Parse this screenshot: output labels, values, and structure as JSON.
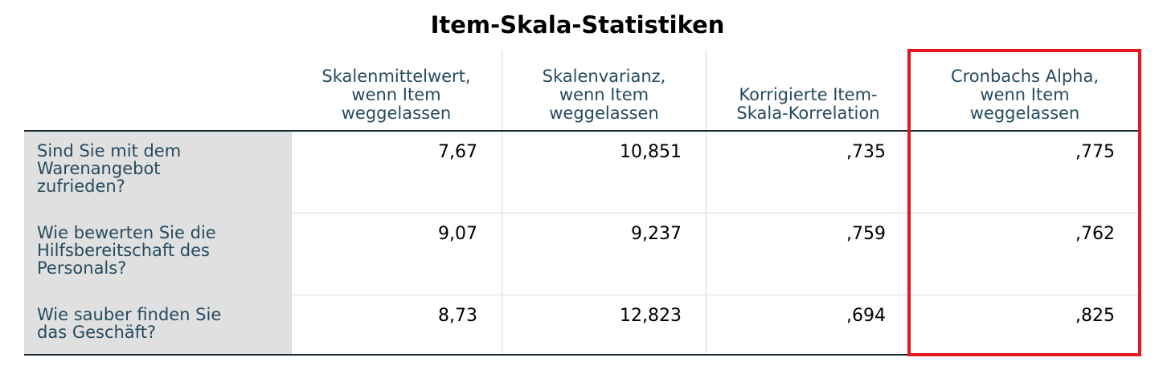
{
  "title": "Item-Skala-Statistiken",
  "table": {
    "columns": [
      [
        "Skalenmittelwert,",
        "wenn Item",
        "weggelassen"
      ],
      [
        "Skalenvarianz,",
        "wenn Item",
        "weggelassen"
      ],
      [
        "Korrigierte Item-",
        "Skala-Korrelation"
      ],
      [
        "Cronbachs Alpha,",
        "wenn Item",
        "weggelassen"
      ]
    ],
    "rows": [
      {
        "label": [
          "Sind Sie mit dem",
          "Warenangebot",
          "zufrieden?"
        ],
        "cells": [
          "7,67",
          "10,851",
          ",735",
          ",775"
        ]
      },
      {
        "label": [
          "Wie bewerten Sie die",
          "Hilfsbereitschaft des",
          "Personals?"
        ],
        "cells": [
          "9,07",
          "9,237",
          ",759",
          ",762"
        ]
      },
      {
        "label": [
          "Wie sauber finden Sie",
          "das Geschäft?"
        ],
        "cells": [
          "8,73",
          "12,823",
          ",694",
          ",825"
        ]
      }
    ]
  }
}
